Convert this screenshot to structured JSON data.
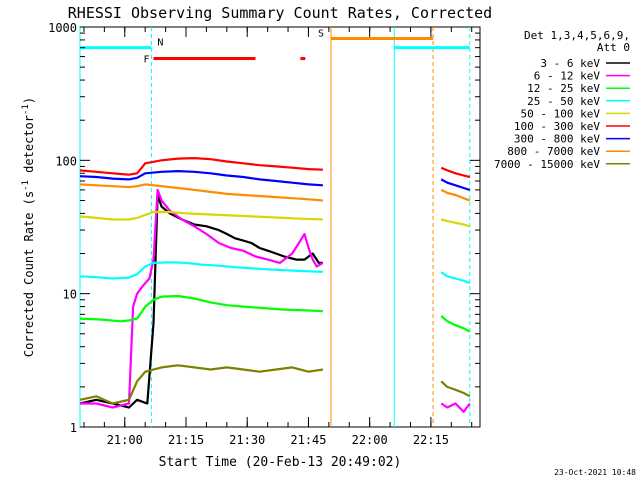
{
  "chart_data": {
    "type": "line",
    "title": "RHESSI Observing Summary Count Rates, Corrected",
    "xlabel": "Start Time (20-Feb-13 20:49:02)",
    "ylabel_main": "Corrected Count Rate (s",
    "ylabel_sup1": "-1",
    "ylabel_mid": " detector",
    "ylabel_sup2": "-1",
    "ylabel_end": ")",
    "yscale": "log",
    "ylim": [
      1,
      1000
    ],
    "xlim_minutes_after_start": [
      0,
      98
    ],
    "x_tick_labels": [
      "21:00",
      "21:15",
      "21:30",
      "21:45",
      "22:00",
      "22:15"
    ],
    "x_tick_minutes_after_start": [
      10.97,
      25.97,
      40.97,
      55.97,
      70.97,
      85.97
    ],
    "y_tick_labels": [
      "1",
      "10",
      "100",
      "1000"
    ],
    "y_tick_values": [
      1,
      10,
      100,
      1000
    ],
    "legend_header": [
      "Det 1,3,4,5,6,9,",
      "Att 0"
    ],
    "legend_position": "right",
    "series": [
      {
        "name": "3 - 6 keV",
        "color": "#000000",
        "segments": [
          {
            "x": [
              0,
              4,
              8,
              12,
              14,
              16.5,
              18,
              19,
              20,
              22,
              25,
              28,
              31,
              34,
              36,
              38,
              40,
              42,
              44,
              46,
              48,
              50,
              53,
              55,
              57,
              58.5,
              59.5
            ],
            "y": [
              1.5,
              1.6,
              1.5,
              1.4,
              1.6,
              1.5,
              6,
              55,
              45,
              40,
              36,
              33,
              32,
              30,
              28,
              26,
              25,
              24,
              22,
              21,
              20,
              19,
              18,
              18,
              20,
              17,
              17
            ]
          }
        ]
      },
      {
        "name": "6 - 12 keV",
        "color": "#ff00ff",
        "segments": [
          {
            "x": [
              0,
              4,
              8,
              12,
              13,
              14,
              15,
              16,
              17,
              18,
              19,
              20,
              22,
              25,
              28,
              31,
              34,
              37,
              40,
              43,
              46,
              49,
              52,
              54,
              55,
              56,
              57,
              58,
              59.5
            ],
            "y": [
              1.5,
              1.5,
              1.4,
              1.5,
              8,
              10,
              11,
              12,
              13,
              18,
              60,
              50,
              42,
              36,
              32,
              28,
              24,
              22,
              21,
              19,
              18,
              17,
              20,
              25,
              28,
              22,
              18,
              16,
              17
            ]
          },
          {
            "x": [
              88.5,
              90,
              92,
              94,
              95.5
            ],
            "y": [
              1.5,
              1.4,
              1.5,
              1.3,
              1.5
            ]
          }
        ]
      },
      {
        "name": "12 - 25 keV",
        "color": "#00ff00",
        "segments": [
          {
            "x": [
              0,
              5,
              10,
              12,
              14,
              16,
              18,
              20,
              24,
              28,
              32,
              36,
              40,
              45,
              50,
              55,
              59.5
            ],
            "y": [
              6.5,
              6.4,
              6.2,
              6.3,
              6.5,
              8,
              9,
              9.5,
              9.6,
              9.2,
              8.6,
              8.2,
              8.0,
              7.8,
              7.6,
              7.5,
              7.4
            ]
          },
          {
            "x": [
              88.5,
              90,
              92,
              94,
              95.5
            ],
            "y": [
              6.8,
              6.2,
              5.8,
              5.5,
              5.2
            ]
          }
        ]
      },
      {
        "name": "25 - 50 keV",
        "color": "#00ffff",
        "segments": [
          {
            "x": [
              0,
              4,
              8,
              12,
              14,
              16,
              18,
              22,
              26,
              30,
              34,
              38,
              42,
              46,
              50,
              54,
              59.5
            ],
            "y": [
              13.5,
              13.3,
              13.0,
              13.2,
              14,
              16,
              17,
              17.2,
              17.0,
              16.5,
              16.2,
              15.8,
              15.5,
              15.2,
              15.0,
              14.8,
              14.6
            ]
          },
          {
            "x": [
              88.5,
              90,
              92,
              94,
              95.5
            ],
            "y": [
              14.5,
              13.5,
              13,
              12.5,
              12
            ]
          }
        ]
      },
      {
        "name": "50 - 100 keV",
        "color": "#d8d800",
        "segments": [
          {
            "x": [
              0,
              4,
              8,
              12,
              14,
              16,
              18,
              22,
              26,
              30,
              34,
              38,
              42,
              46,
              50,
              54,
              59.5
            ],
            "y": [
              38,
              37,
              36,
              36,
              37,
              39,
              41,
              41,
              40,
              39.5,
              39,
              38.5,
              38,
              37.5,
              37,
              36.5,
              36
            ]
          },
          {
            "x": [
              88.5,
              90,
              92,
              94,
              95.5
            ],
            "y": [
              36,
              35,
              34,
              33,
              32
            ]
          }
        ]
      },
      {
        "name": "100 - 300 keV",
        "color": "#ff0000",
        "segments": [
          {
            "x": [
              0,
              4,
              8,
              12,
              14,
              16,
              20,
              24,
              28,
              32,
              36,
              40,
              44,
              48,
              52,
              56,
              59.5
            ],
            "y": [
              84,
              82,
              80,
              78,
              80,
              95,
              100,
              103,
              104,
              102,
              98,
              95,
              92,
              90,
              88,
              86,
              85
            ]
          },
          {
            "x": [
              88.5,
              90,
              92,
              94,
              95.5
            ],
            "y": [
              88,
              84,
              80,
              77,
              75
            ]
          }
        ]
      },
      {
        "name": "300 - 800 keV",
        "color": "#0000ff",
        "segments": [
          {
            "x": [
              0,
              4,
              8,
              12,
              14,
              16,
              20,
              24,
              28,
              32,
              36,
              40,
              44,
              48,
              52,
              56,
              59.5
            ],
            "y": [
              76,
              75,
              73,
              72,
              74,
              80,
              82,
              83,
              82,
              80,
              77,
              75,
              72,
              70,
              68,
              66,
              65
            ]
          },
          {
            "x": [
              88.5,
              90,
              92,
              94,
              95.5
            ],
            "y": [
              72,
              68,
              65,
              62,
              60
            ]
          }
        ]
      },
      {
        "name": "800 - 7000 keV",
        "color": "#ff8c00",
        "segments": [
          {
            "x": [
              0,
              4,
              8,
              12,
              14,
              16,
              20,
              24,
              28,
              32,
              36,
              40,
              44,
              48,
              52,
              56,
              59.5
            ],
            "y": [
              66,
              65,
              64,
              63,
              64,
              66,
              64,
              62,
              60,
              58,
              56,
              55,
              54,
              53,
              52,
              51,
              50
            ]
          },
          {
            "x": [
              88.5,
              90,
              92,
              94,
              95.5
            ],
            "y": [
              60,
              57,
              55,
              52,
              50
            ]
          }
        ]
      },
      {
        "name": "7000 - 15000 keV",
        "color": "#808000",
        "segments": [
          {
            "x": [
              0,
              4,
              8,
              12,
              14,
              16,
              20,
              24,
              28,
              32,
              36,
              40,
              44,
              48,
              52,
              56,
              59.5
            ],
            "y": [
              1.6,
              1.7,
              1.5,
              1.6,
              2.2,
              2.6,
              2.8,
              2.9,
              2.8,
              2.7,
              2.8,
              2.7,
              2.6,
              2.7,
              2.8,
              2.6,
              2.7
            ]
          },
          {
            "x": [
              88.5,
              90,
              92,
              94,
              95.5
            ],
            "y": [
              2.2,
              2.0,
              1.9,
              1.8,
              1.7
            ]
          }
        ]
      }
    ],
    "annotations": [
      {
        "label": "N",
        "color": "#00ffff",
        "x_start": 0,
        "x_end": 17.5,
        "y": 700
      },
      {
        "label": "F",
        "color": "#ff0000",
        "x_start": 18,
        "x_end": 43,
        "y": 580
      },
      {
        "label": "",
        "color": "#ff0000",
        "x_start": 54,
        "x_end": 55.2,
        "y": 580
      },
      {
        "label": "S",
        "color": "#ff8c00",
        "x_start": 61.5,
        "x_end": 86.5,
        "y": 820
      },
      {
        "label": "",
        "color": "#00ffff",
        "x_start": 77,
        "x_end": 95.5,
        "y": 700
      }
    ],
    "vertical_lines": [
      {
        "x": 0,
        "color": "#00ffff",
        "style": "solid"
      },
      {
        "x": 17.5,
        "color": "#00ffff",
        "style": "dashed"
      },
      {
        "x": 61.5,
        "color": "#ff8c00",
        "style": "solid"
      },
      {
        "x": 77,
        "color": "#00ffff",
        "style": "solid"
      },
      {
        "x": 86.5,
        "color": "#ff8c00",
        "style": "dashed"
      },
      {
        "x": 95.5,
        "color": "#00ffff",
        "style": "dashed"
      }
    ]
  },
  "footer_date": "23-Oct-2021 10:48"
}
